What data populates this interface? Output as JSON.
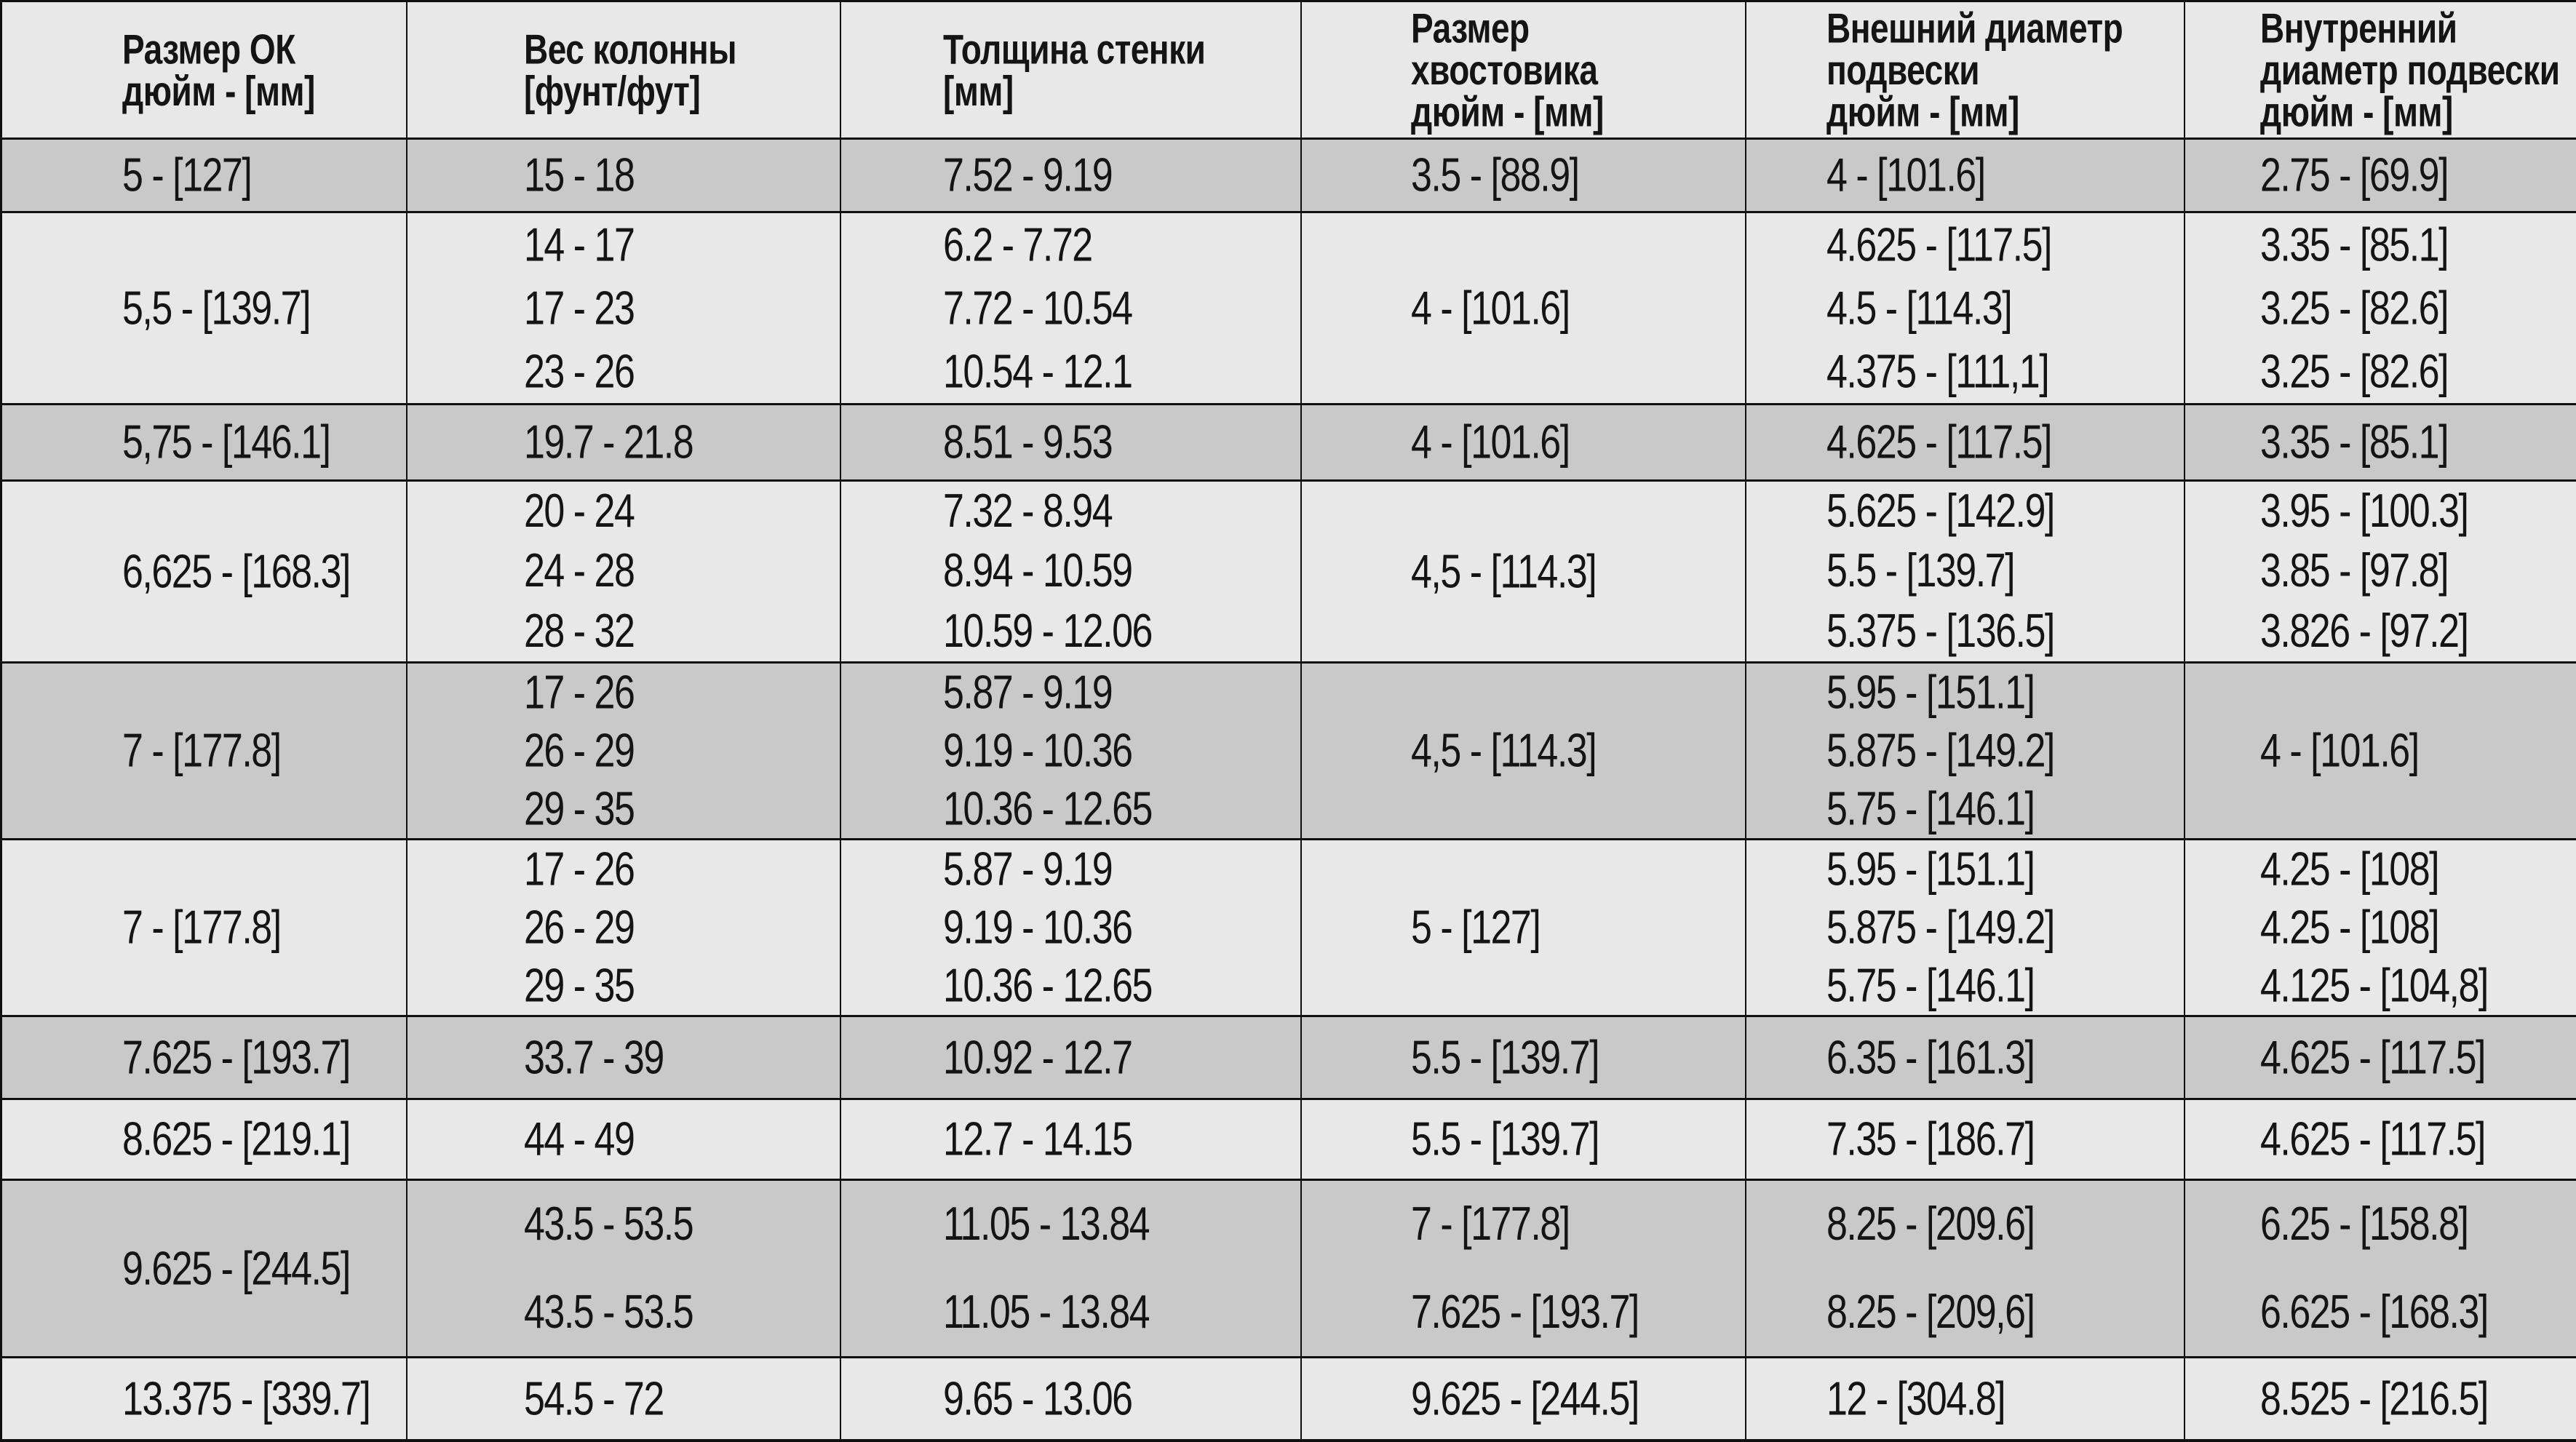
{
  "table": {
    "colors": {
      "light": "#e8e8e8",
      "dark": "#c9c9c9",
      "border": "#101010",
      "text": "#141414"
    },
    "columns": [
      {
        "title": "Размер ОК\nдюйм - [мм]"
      },
      {
        "title": "Вес колонны\n[фунт/фут]"
      },
      {
        "title": "Толщина стенки\n[мм]"
      },
      {
        "title": "Размер\nхвостовика\nдюйм - [мм]"
      },
      {
        "title": "Внешний диаметр\nподвески\nдюйм - [мм]"
      },
      {
        "title": "Внутренний\nдиаметр подвески\nдюйм - [мм]"
      }
    ],
    "rows": [
      {
        "shade": "dark",
        "cells": [
          [
            "5 - [127]"
          ],
          [
            "15 - 18"
          ],
          [
            "7.52 - 9.19"
          ],
          [
            "3.5 - [88.9]"
          ],
          [
            "4 - [101.6]"
          ],
          [
            "2.75 - [69.9]"
          ]
        ]
      },
      {
        "shade": "light",
        "cells": [
          [
            "5,5 - [139.7]"
          ],
          [
            "14 - 17",
            "17 - 23",
            "23 - 26"
          ],
          [
            "6.2 - 7.72",
            "7.72 - 10.54",
            "10.54 - 12.1"
          ],
          [
            "4 - [101.6]"
          ],
          [
            "4.625 - [117.5]",
            "4.5 - [114.3]",
            "4.375 - [111,1]"
          ],
          [
            "3.35 - [85.1]",
            "3.25 - [82.6]",
            "3.25 - [82.6]"
          ]
        ]
      },
      {
        "shade": "dark",
        "cells": [
          [
            "5,75 - [146.1]"
          ],
          [
            "19.7 - 21.8"
          ],
          [
            "8.51 - 9.53"
          ],
          [
            "4 - [101.6]"
          ],
          [
            "4.625 - [117.5]"
          ],
          [
            "3.35 - [85.1]"
          ]
        ]
      },
      {
        "shade": "light",
        "cells": [
          [
            "6,625 - [168.3]"
          ],
          [
            "20 - 24",
            "24 - 28",
            "28 - 32"
          ],
          [
            "7.32 - 8.94",
            "8.94 - 10.59",
            "10.59 - 12.06"
          ],
          [
            "4,5 - [114.3]"
          ],
          [
            "5.625 - [142.9]",
            "5.5 - [139.7]",
            "5.375 - [136.5]"
          ],
          [
            "3.95 - [100.3]",
            "3.85 - [97.8]",
            "3.826 - [97.2]"
          ]
        ]
      },
      {
        "shade": "dark",
        "cells": [
          [
            "7 - [177.8]"
          ],
          [
            "17 - 26",
            "26 - 29",
            "29 - 35"
          ],
          [
            "5.87 - 9.19",
            "9.19 - 10.36",
            "10.36 - 12.65"
          ],
          [
            "4,5 - [114.3]"
          ],
          [
            "5.95 - [151.1]",
            "5.875 - [149.2]",
            "5.75 - [146.1]"
          ],
          [
            "4 - [101.6]"
          ]
        ]
      },
      {
        "shade": "light",
        "cells": [
          [
            "7 - [177.8]"
          ],
          [
            "17 - 26",
            "26 - 29",
            "29 - 35"
          ],
          [
            "5.87 - 9.19",
            "9.19 - 10.36",
            "10.36 - 12.65"
          ],
          [
            "5 - [127]"
          ],
          [
            "5.95 - [151.1]",
            "5.875 - [149.2]",
            "5.75 - [146.1]"
          ],
          [
            "4.25 - [108]",
            "4.25 - [108]",
            "4.125 - [104,8]"
          ]
        ]
      },
      {
        "shade": "dark",
        "cells": [
          [
            "7.625 - [193.7]"
          ],
          [
            "33.7 - 39"
          ],
          [
            "10.92 - 12.7"
          ],
          [
            "5.5 - [139.7]"
          ],
          [
            "6.35 - [161.3]"
          ],
          [
            "4.625 - [117.5]"
          ]
        ]
      },
      {
        "shade": "light",
        "cells": [
          [
            "8.625 - [219.1]"
          ],
          [
            "44 - 49"
          ],
          [
            "12.7 - 14.15"
          ],
          [
            "5.5 - [139.7]"
          ],
          [
            "7.35 - [186.7]"
          ],
          [
            "4.625 - [117.5]"
          ]
        ]
      },
      {
        "shade": "dark",
        "cells": [
          [
            "9.625 - [244.5]"
          ],
          [
            "43.5 - 53.5",
            "43.5 - 53.5"
          ],
          [
            "11.05 - 13.84",
            "11.05 - 13.84"
          ],
          [
            "7 - [177.8]",
            "7.625 - [193.7]"
          ],
          [
            "8.25 - [209.6]",
            "8.25 - [209,6]"
          ],
          [
            "6.25 - [158.8]",
            "6.625 - [168.3]"
          ]
        ]
      },
      {
        "shade": "light",
        "cells": [
          [
            "13.375 - [339.7]"
          ],
          [
            "54.5 - 72"
          ],
          [
            "9.65 - 13.06"
          ],
          [
            "9.625 - [244.5]"
          ],
          [
            "12 - [304.8]"
          ],
          [
            "8.525 - [216.5]"
          ]
        ]
      }
    ]
  }
}
